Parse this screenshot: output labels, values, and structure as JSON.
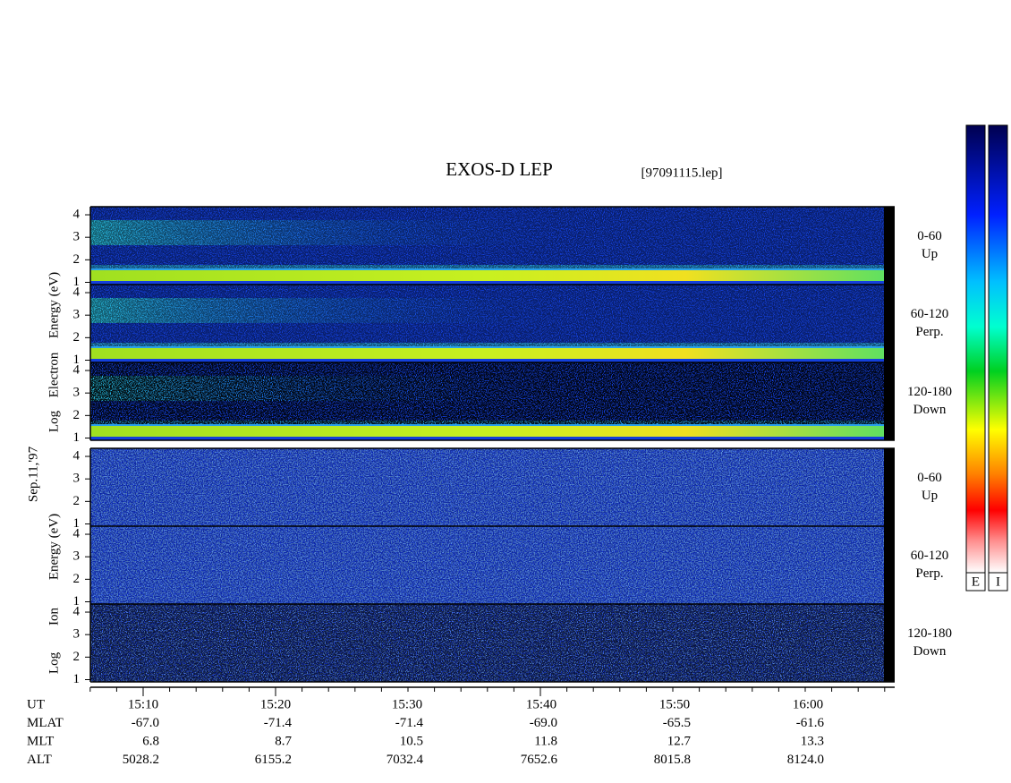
{
  "title": "EXOS-D LEP",
  "file": "[97091115.lep]",
  "date": "Sep.11,'97",
  "groups": [
    {
      "axis_label": [
        "Log",
        "Electron",
        "Energy (eV)"
      ],
      "panels": [
        {
          "range": "0-60",
          "direction": "Up"
        },
        {
          "range": "60-120",
          "direction": "Perp."
        },
        {
          "range": "120-180",
          "direction": "Down"
        }
      ]
    },
    {
      "axis_label": [
        "Log",
        "Ion",
        "Energy (eV)"
      ],
      "panels": [
        {
          "range": "0-60",
          "direction": "Up"
        },
        {
          "range": "60-120",
          "direction": "Perp."
        },
        {
          "range": "120-180",
          "direction": "Down"
        }
      ]
    }
  ],
  "yticks": [
    1,
    2,
    3,
    4
  ],
  "ylim": [
    0.9,
    4.2
  ],
  "colorbars": [
    "E",
    "I"
  ],
  "table": {
    "rows": [
      {
        "label": "UT",
        "values": [
          "15:10",
          "15:20",
          "15:30",
          "15:40",
          "15:50",
          "16:00"
        ]
      },
      {
        "label": "MLAT",
        "values": [
          "-67.0",
          "-71.4",
          "-71.4",
          "-69.0",
          "-65.5",
          "-61.6"
        ]
      },
      {
        "label": "MLT",
        "values": [
          "6.8",
          "8.7",
          "10.5",
          "11.8",
          "12.7",
          "13.3"
        ]
      },
      {
        "label": "ALT",
        "values": [
          "5028.2",
          "6155.2",
          "7032.4",
          "7652.6",
          "8015.8",
          "8124.0"
        ]
      }
    ]
  }
}
